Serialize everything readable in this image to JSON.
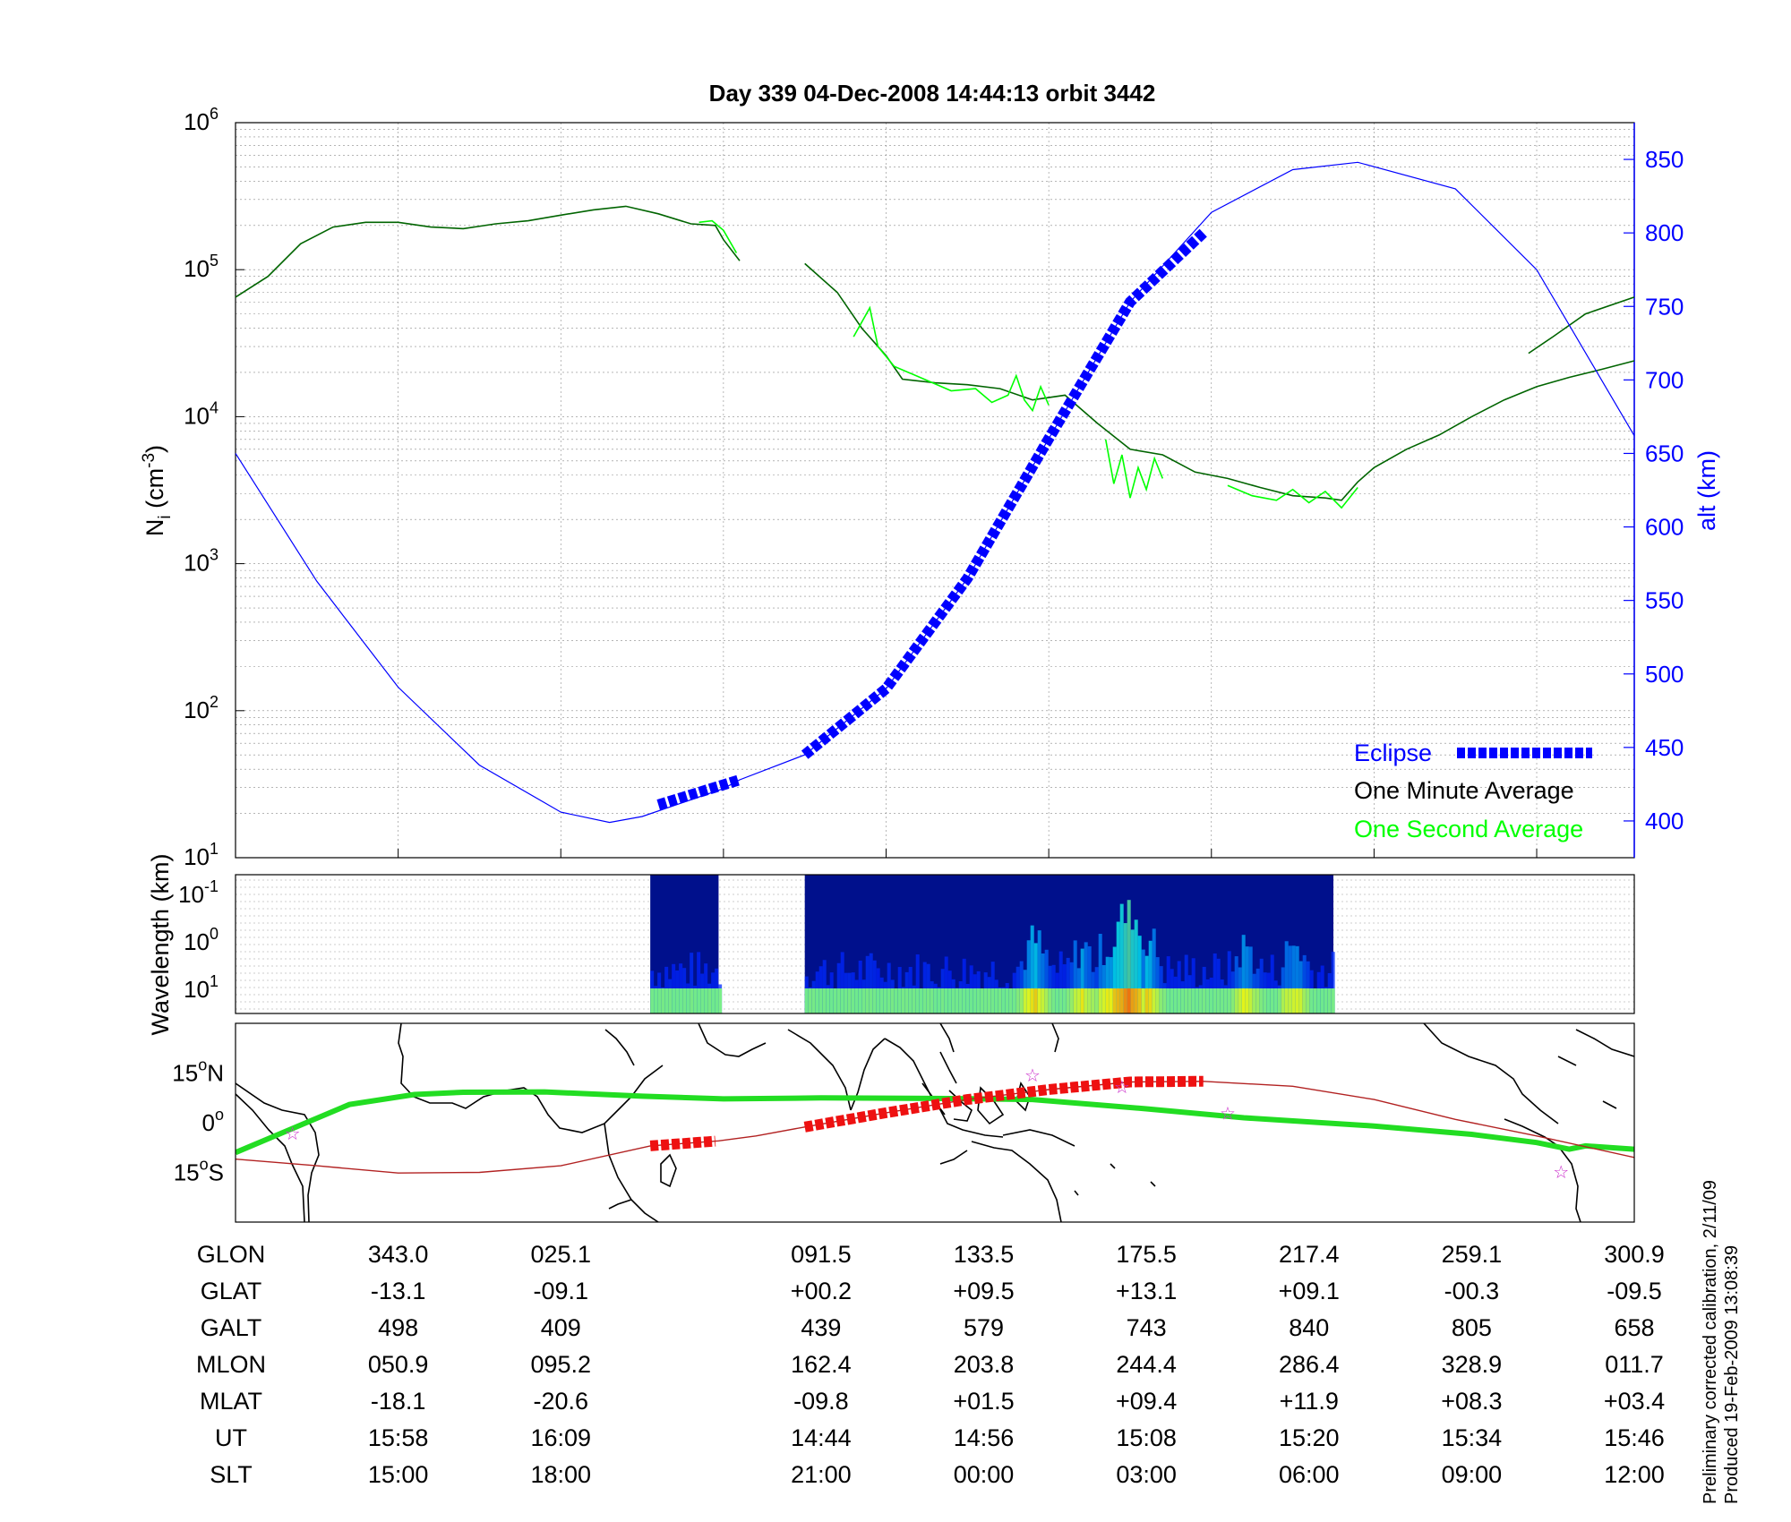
{
  "chart_data": [
    {
      "type": "line",
      "title": "Day 339  04-Dec-2008 14:44:13   orbit 3442",
      "ylabel": "N",
      "ylabel_sub": "i",
      "ylabel_unit_pre": " (cm",
      "ylabel_unit_exp": "-3",
      "ylabel_unit_post": ")",
      "yscale": "log",
      "ylim": [
        10,
        1000000
      ],
      "ytick_exponents": [
        "1",
        "2",
        "3",
        "4",
        "5",
        "6"
      ],
      "ytick_base": "10",
      "y2label": "alt (km)",
      "y2lim": [
        375,
        875
      ],
      "y2ticks": [
        "400",
        "450",
        "500",
        "550",
        "600",
        "650",
        "700",
        "750",
        "800",
        "850"
      ],
      "xlim": [
        0,
        8.6
      ],
      "grid": true,
      "legend_position": "bottom-right",
      "legend": [
        {
          "label": "Eclipse",
          "color": "#0000ff"
        },
        {
          "label": "One Minute Average",
          "color": "#000000"
        },
        {
          "label": "One Second Average",
          "color": "#00ff00"
        }
      ],
      "series": [
        {
          "name": "One Minute Average",
          "color": "#006400",
          "axis": "left",
          "segments": [
            [
              [
                0,
                65000
              ],
              [
                0.2,
                90000
              ],
              [
                0.4,
                150000
              ],
              [
                0.6,
                195000
              ],
              [
                0.8,
                210000
              ],
              [
                1.0,
                210000
              ],
              [
                1.2,
                195000
              ],
              [
                1.4,
                190000
              ],
              [
                1.6,
                205000
              ],
              [
                1.8,
                215000
              ],
              [
                2.0,
                235000
              ],
              [
                2.2,
                255000
              ],
              [
                2.4,
                270000
              ],
              [
                2.6,
                240000
              ],
              [
                2.8,
                205000
              ],
              [
                2.95,
                200000
              ],
              [
                3.0,
                160000
              ],
              [
                3.1,
                115000
              ]
            ],
            [
              [
                3.5,
                110000
              ],
              [
                3.7,
                70000
              ],
              [
                3.85,
                40000
              ],
              [
                4.0,
                26000
              ],
              [
                4.1,
                18000
              ],
              [
                4.3,
                17000
              ],
              [
                4.5,
                16500
              ],
              [
                4.7,
                15500
              ],
              [
                4.9,
                13000
              ],
              [
                5.1,
                14000
              ],
              [
                5.3,
                9000
              ],
              [
                5.5,
                6000
              ],
              [
                5.7,
                5500
              ],
              [
                5.9,
                4200
              ],
              [
                6.1,
                3800
              ],
              [
                6.3,
                3300
              ],
              [
                6.5,
                2900
              ],
              [
                6.7,
                2800
              ],
              [
                6.8,
                2700
              ],
              [
                6.9,
                3600
              ],
              [
                7.0,
                4500
              ],
              [
                7.2,
                6000
              ],
              [
                7.4,
                7500
              ],
              [
                7.6,
                10000
              ],
              [
                7.8,
                13000
              ],
              [
                8.0,
                16000
              ],
              [
                8.2,
                18500
              ],
              [
                8.4,
                21000
              ],
              [
                8.6,
                24000
              ]
            ],
            [
              [
                7.95,
                27000
              ],
              [
                8.1,
                35000
              ],
              [
                8.3,
                50000
              ],
              [
                8.6,
                65000
              ]
            ]
          ]
        },
        {
          "name": "One Second Average",
          "color": "#00ff00",
          "axis": "left",
          "segments": [
            [
              [
                2.85,
                210000
              ],
              [
                2.93,
                215000
              ],
              [
                3.0,
                185000
              ],
              [
                3.08,
                130000
              ]
            ],
            [
              [
                3.8,
                35000
              ],
              [
                3.9,
                55000
              ],
              [
                3.95,
                30000
              ],
              [
                4.05,
                22000
              ],
              [
                4.4,
                15000
              ],
              [
                4.55,
                15500
              ],
              [
                4.65,
                12500
              ],
              [
                4.75,
                14000
              ],
              [
                4.8,
                19000
              ],
              [
                4.85,
                13000
              ],
              [
                4.9,
                11000
              ],
              [
                4.95,
                16000
              ],
              [
                5.0,
                12000
              ]
            ],
            [
              [
                5.35,
                7000
              ],
              [
                5.4,
                3500
              ],
              [
                5.45,
                5500
              ],
              [
                5.5,
                2800
              ],
              [
                5.55,
                4500
              ],
              [
                5.6,
                3200
              ],
              [
                5.65,
                5200
              ],
              [
                5.7,
                3800
              ]
            ],
            [
              [
                6.1,
                3400
              ],
              [
                6.25,
                2900
              ],
              [
                6.4,
                2700
              ],
              [
                6.5,
                3200
              ],
              [
                6.6,
                2600
              ],
              [
                6.7,
                3100
              ],
              [
                6.8,
                2400
              ],
              [
                6.9,
                3300
              ]
            ]
          ]
        },
        {
          "name": "alt",
          "color": "#0000ff",
          "axis": "right",
          "points": [
            [
              0,
              650
            ],
            [
              0.5,
              563
            ],
            [
              1.0,
              491
            ],
            [
              1.5,
              438
            ],
            [
              2.0,
              406
            ],
            [
              2.3,
              399
            ],
            [
              2.5,
              403
            ],
            [
              3.0,
              422
            ],
            [
              3.1,
              428
            ],
            [
              3.5,
              445
            ],
            [
              4.0,
              490
            ],
            [
              4.5,
              565
            ],
            [
              5.0,
              660
            ],
            [
              5.5,
              753
            ],
            [
              6.0,
              814
            ],
            [
              6.5,
              843
            ],
            [
              6.9,
              848
            ],
            [
              7.5,
              830
            ],
            [
              8.0,
              775
            ],
            [
              8.6,
              662
            ]
          ]
        },
        {
          "name": "Eclipse",
          "color": "#0000ff",
          "axis": "right",
          "segments": [
            [
              [
                2.6,
                411
              ],
              [
                3.1,
                428
              ]
            ],
            [
              [
                3.5,
                445
              ],
              [
                4.0,
                490
              ],
              [
                4.5,
                565
              ],
              [
                5.0,
                660
              ],
              [
                5.5,
                753
              ],
              [
                5.95,
                800
              ]
            ]
          ]
        }
      ]
    },
    {
      "type": "heatmap",
      "ylabel": "Wavelength (km)",
      "ytick_base": "10",
      "ytick_exponents": [
        "-1",
        "0",
        "1"
      ],
      "xlim": [
        0,
        8.6
      ],
      "data_windows": [
        [
          2.55,
          2.97
        ],
        [
          3.5,
          6.75
        ]
      ],
      "colormap": "jet",
      "intensity_hotspots": [
        [
          4.9,
          0.55
        ],
        [
          5.2,
          0.45
        ],
        [
          5.35,
          0.5
        ],
        [
          5.45,
          0.95
        ],
        [
          5.5,
          1.0
        ],
        [
          5.6,
          0.6
        ],
        [
          6.2,
          0.45
        ],
        [
          6.5,
          0.5
        ]
      ]
    },
    {
      "type": "map",
      "yticks": [
        {
          "deg": "15",
          "hemi": "N"
        },
        {
          "deg": "0",
          "hemi": ""
        },
        {
          "deg": "15",
          "hemi": "S"
        }
      ],
      "ylim": [
        -30,
        30
      ],
      "xlim": [
        0,
        8.6
      ],
      "tracks": [
        {
          "name": "green-track",
          "color": "#22dd22",
          "points": [
            [
              0,
              -9
            ],
            [
              0.7,
              5.5
            ],
            [
              1.1,
              8.5
            ],
            [
              1.4,
              9.2
            ],
            [
              1.9,
              9.3
            ],
            [
              2.5,
              8
            ],
            [
              3.0,
              7.2
            ],
            [
              3.6,
              7.5
            ],
            [
              4.4,
              7.3
            ],
            [
              4.9,
              7
            ],
            [
              5.6,
              4.2
            ],
            [
              6.2,
              1.5
            ],
            [
              7.0,
              -1
            ],
            [
              7.6,
              -3.5
            ],
            [
              8.0,
              -6
            ],
            [
              8.2,
              -8
            ],
            [
              8.3,
              -7
            ],
            [
              8.6,
              -8
            ]
          ]
        },
        {
          "name": "red-track",
          "color": "#b22222",
          "points": [
            [
              0,
              -11
            ],
            [
              0.5,
              -13
            ],
            [
              1.0,
              -15.2
            ],
            [
              1.5,
              -15
            ],
            [
              2.0,
              -13
            ],
            [
              2.55,
              -7
            ],
            [
              2.97,
              -5.5
            ],
            [
              3.2,
              -4
            ],
            [
              3.5,
              -1.3
            ],
            [
              4.0,
              3
            ],
            [
              4.5,
              7
            ],
            [
              5.0,
              10
            ],
            [
              5.5,
              12.3
            ],
            [
              5.95,
              12.5
            ],
            [
              6.5,
              11
            ],
            [
              7.0,
              7
            ],
            [
              7.5,
              1
            ],
            [
              8.0,
              -4
            ],
            [
              8.6,
              -10.5
            ]
          ]
        }
      ],
      "eclipse_segments": [
        [
          2.55,
          2.97
        ],
        [
          3.5,
          5.95
        ]
      ],
      "stars": [
        [
          0.35,
          -3.2
        ],
        [
          4.9,
          14.3
        ],
        [
          5.45,
          10.8
        ],
        [
          6.1,
          2.8
        ],
        [
          8.15,
          -14.8
        ]
      ],
      "coastline_note": "world coastline"
    }
  ],
  "bottom_table": {
    "rows": [
      "GLON",
      "GLAT",
      "GALT",
      "MLON",
      "MLAT",
      "UT",
      "SLT"
    ],
    "columns": [
      {
        "x": 1.0,
        "vals": [
          "343.0",
          "-13.1",
          "498",
          "050.9",
          "-18.1",
          "15:58",
          "15:00"
        ]
      },
      {
        "x": 2.0,
        "vals": [
          "025.1",
          "-09.1",
          "409",
          "095.2",
          "-20.6",
          "16:09",
          "18:00"
        ]
      },
      {
        "x": 3.6,
        "vals": [
          "091.5",
          "+00.2",
          "439",
          "162.4",
          "-09.8",
          "14:44",
          "21:00"
        ]
      },
      {
        "x": 4.6,
        "vals": [
          "133.5",
          "+09.5",
          "579",
          "203.8",
          "+01.5",
          "14:56",
          "00:00"
        ]
      },
      {
        "x": 5.6,
        "vals": [
          "175.5",
          "+13.1",
          "743",
          "244.4",
          "+09.4",
          "15:08",
          "03:00"
        ]
      },
      {
        "x": 6.6,
        "vals": [
          "217.4",
          "+09.1",
          "840",
          "286.4",
          "+11.9",
          "15:20",
          "06:00"
        ]
      },
      {
        "x": 7.6,
        "vals": [
          "259.1",
          "-00.3",
          "805",
          "328.9",
          "+08.3",
          "15:34",
          "09:00"
        ]
      },
      {
        "x": 8.6,
        "vals": [
          "300.9",
          "-09.5",
          "658",
          "011.7",
          "+03.4",
          "15:46",
          "12:00"
        ]
      }
    ]
  },
  "footer": {
    "line1": "Preliminary corrected calibration, 2/11/09",
    "line2": "Produced 19-Feb-2009 13:08:39"
  }
}
